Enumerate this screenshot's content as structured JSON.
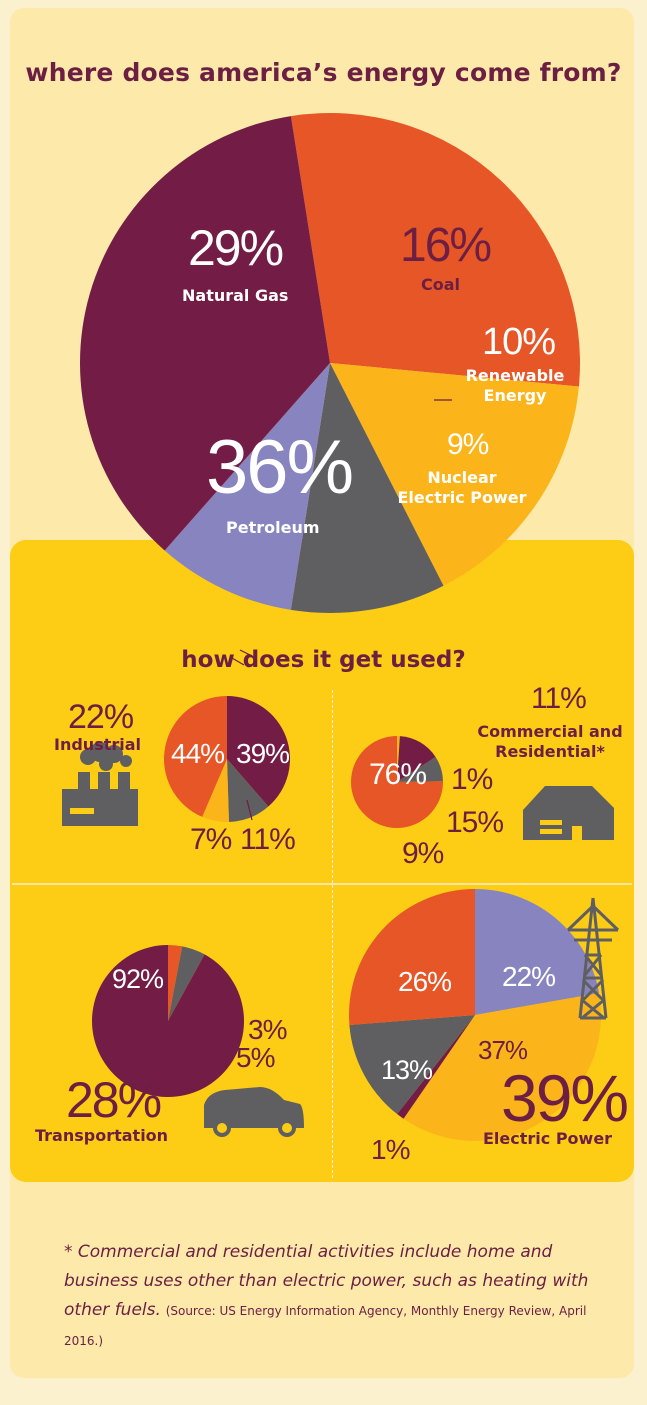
{
  "title": "where does america’s energy come from?",
  "subtitle": "how does it get used?",
  "colors": {
    "petroleum": "#731c45",
    "natural_gas": "#e65627",
    "coal": "#fbb41a",
    "renewable": "#5f5f61",
    "nuclear": "#8884bf",
    "panel": "#fccd14",
    "text": "#6c1e43"
  },
  "chart_data": [
    {
      "type": "pie",
      "title": "where does america’s energy come from?",
      "slices": [
        {
          "label": "Natural Gas",
          "value": 29,
          "display": "29%",
          "color": "#e65627"
        },
        {
          "label": "Coal",
          "value": 16,
          "display": "16%",
          "color": "#fbb41a"
        },
        {
          "label": "Renewable Energy",
          "value": 10,
          "display": "10%",
          "color": "#5f5f61"
        },
        {
          "label": "Nuclear Electric Power",
          "value": 9,
          "display": "9%",
          "color": "#8884bf"
        },
        {
          "label": "Petroleum",
          "value": 36,
          "display": "36%",
          "color": "#731c45"
        }
      ]
    },
    {
      "type": "pie",
      "title": "Industrial",
      "share": "22%",
      "slices": [
        {
          "value": 39,
          "display": "39%",
          "color": "#731c45"
        },
        {
          "value": 11,
          "display": "11%",
          "color": "#5f5f61"
        },
        {
          "value": 7,
          "display": "7%",
          "color": "#fbb41a"
        },
        {
          "value": 44,
          "display": "44%",
          "color": "#e65627"
        }
      ]
    },
    {
      "type": "pie",
      "title": "Commercial and Residential*",
      "share": "11%",
      "slices": [
        {
          "value": 1,
          "display": "1%",
          "color": "#fbb41a"
        },
        {
          "value": 15,
          "display": "15%",
          "color": "#731c45"
        },
        {
          "value": 9,
          "display": "9%",
          "color": "#5f5f61"
        },
        {
          "value": 76,
          "display": "76%",
          "color": "#e65627"
        }
      ]
    },
    {
      "type": "pie",
      "title": "Transportation",
      "share": "28%",
      "slices": [
        {
          "value": 3,
          "display": "3%",
          "color": "#e65627"
        },
        {
          "value": 5,
          "display": "5%",
          "color": "#5f5f61"
        },
        {
          "value": 92,
          "display": "92%",
          "color": "#731c45"
        }
      ]
    },
    {
      "type": "pie",
      "title": "Electric Power",
      "share": "39%",
      "slices": [
        {
          "value": 22,
          "display": "22%",
          "color": "#8884bf"
        },
        {
          "value": 37,
          "display": "37%",
          "color": "#fbb41a"
        },
        {
          "value": 1,
          "display": "1%",
          "color": "#731c45"
        },
        {
          "value": 13,
          "display": "13%",
          "color": "#5f5f61"
        },
        {
          "value": 26,
          "display": "26%",
          "color": "#e65627"
        }
      ]
    }
  ],
  "footnote": {
    "main": "* Commercial and residential activities include home and business uses other than electric power, such as heating with other fuels.",
    "source": "(Source: US Energy Information Agency, Monthly Energy Review, April 2016.)"
  },
  "icons": [
    "factory-icon",
    "house-icon",
    "car-icon",
    "power-tower-icon"
  ]
}
